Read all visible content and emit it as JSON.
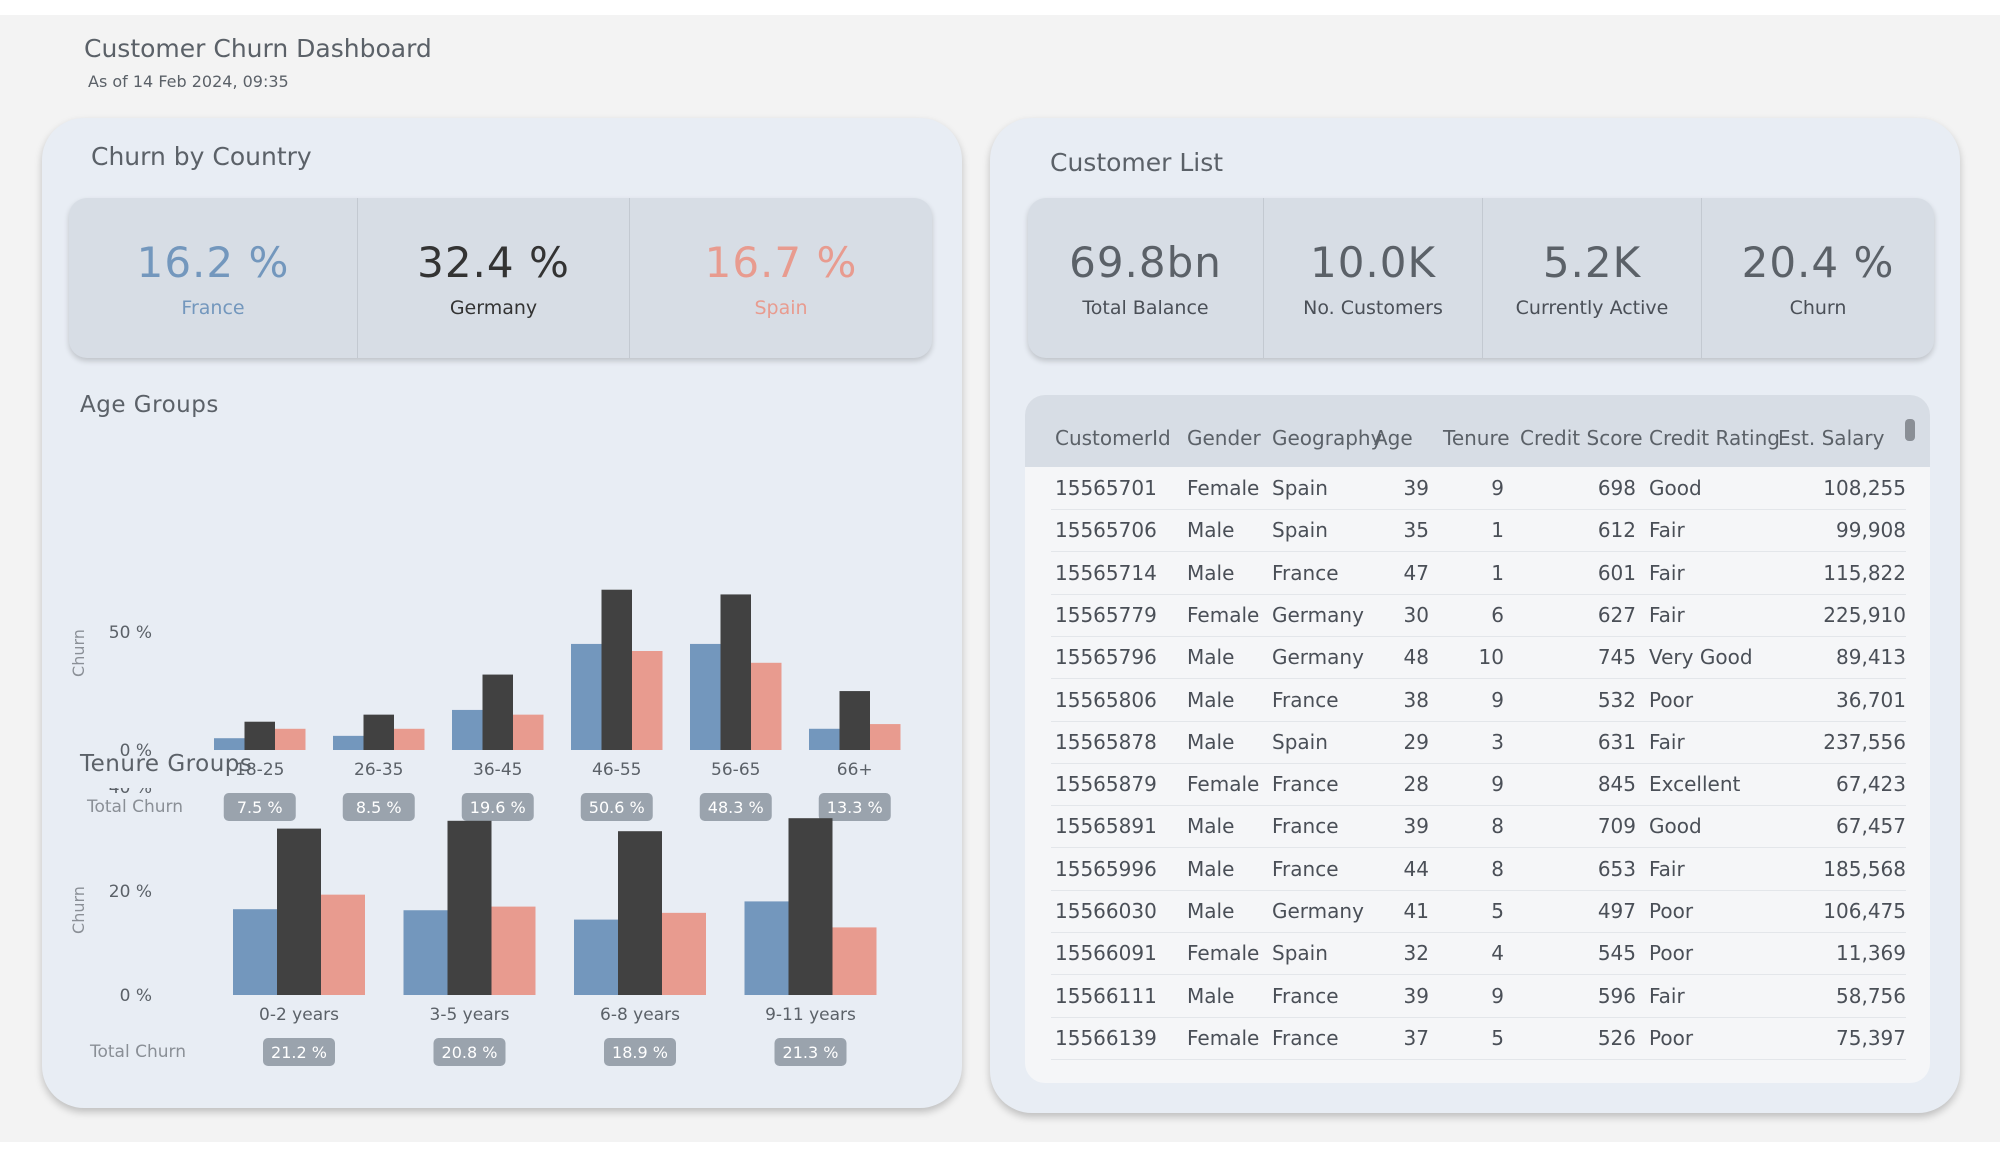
{
  "page": {
    "title": "Customer Churn Dashboard",
    "subtitle": "As of 14 Feb 2024, 09:35"
  },
  "colors": {
    "france": "#7397bd",
    "germany": "#414141",
    "spain": "#e89b8f"
  },
  "left": {
    "title": "Churn by Country",
    "kpis": [
      {
        "value": "16.2 %",
        "label": "France",
        "color": "#7397bd"
      },
      {
        "value": "32.4 %",
        "label": "Germany",
        "color": "#333333"
      },
      {
        "value": "16.7 %",
        "label": "Spain",
        "color": "#e89b8f"
      }
    ],
    "age_title": "Age Groups",
    "tenure_title": "Tenure Groups",
    "total_churn_label": "Total Churn",
    "age_totals": [
      "7.5 %",
      "8.5 %",
      "19.6 %",
      "50.6 %",
      "48.3 %",
      "13.3 %"
    ],
    "tenure_totals": [
      "21.2 %",
      "20.8 %",
      "18.9 %",
      "21.3 %"
    ]
  },
  "chart_data": [
    {
      "type": "bar",
      "title": "Age Groups",
      "ylabel": "Churn",
      "categories": [
        "18-25",
        "26-35",
        "36-45",
        "46-55",
        "56-65",
        "66+"
      ],
      "series": [
        {
          "name": "France",
          "values": [
            5,
            6,
            17,
            45,
            45,
            9
          ]
        },
        {
          "name": "Germany",
          "values": [
            12,
            15,
            32,
            68,
            66,
            25
          ]
        },
        {
          "name": "Spain",
          "values": [
            9,
            9,
            15,
            42,
            37,
            11
          ]
        }
      ],
      "yticks": [
        "0 %",
        "50 %"
      ],
      "ylim": [
        0,
        70
      ],
      "grid": false
    },
    {
      "type": "bar",
      "title": "Tenure Groups",
      "ylabel": "Churn",
      "categories": [
        "0-2 years",
        "3-5 years",
        "6-8 years",
        "9-11 years"
      ],
      "series": [
        {
          "name": "France",
          "values": [
            16.5,
            16.3,
            14.5,
            18
          ]
        },
        {
          "name": "Germany",
          "values": [
            32,
            33.5,
            31.5,
            34
          ]
        },
        {
          "name": "Spain",
          "values": [
            19.3,
            17,
            15.8,
            13
          ]
        }
      ],
      "yticks": [
        "0 %",
        "20 %",
        "40 %"
      ],
      "ylim": [
        0,
        40
      ],
      "grid": false
    }
  ],
  "right": {
    "title": "Customer List",
    "kpis": [
      {
        "value": "69.8bn",
        "label": "Total Balance"
      },
      {
        "value": "10.0K",
        "label": "No. Customers"
      },
      {
        "value": "5.2K",
        "label": "Currently Active"
      },
      {
        "value": "20.4 %",
        "label": "Churn"
      }
    ],
    "table": {
      "columns": [
        "CustomerId",
        "Gender",
        "Geography",
        "Age",
        "Tenure",
        "Credit Score",
        "Credit Rating",
        "Est. Salary"
      ],
      "rows": [
        [
          "15565701",
          "Female",
          "Spain",
          "39",
          "9",
          "698",
          "Good",
          "108,255"
        ],
        [
          "15565706",
          "Male",
          "Spain",
          "35",
          "1",
          "612",
          "Fair",
          "99,908"
        ],
        [
          "15565714",
          "Male",
          "France",
          "47",
          "1",
          "601",
          "Fair",
          "115,822"
        ],
        [
          "15565779",
          "Female",
          "Germany",
          "30",
          "6",
          "627",
          "Fair",
          "225,910"
        ],
        [
          "15565796",
          "Male",
          "Germany",
          "48",
          "10",
          "745",
          "Very Good",
          "89,413"
        ],
        [
          "15565806",
          "Male",
          "France",
          "38",
          "9",
          "532",
          "Poor",
          "36,701"
        ],
        [
          "15565878",
          "Male",
          "Spain",
          "29",
          "3",
          "631",
          "Fair",
          "237,556"
        ],
        [
          "15565879",
          "Female",
          "France",
          "28",
          "9",
          "845",
          "Excellent",
          "67,423"
        ],
        [
          "15565891",
          "Male",
          "France",
          "39",
          "8",
          "709",
          "Good",
          "67,457"
        ],
        [
          "15565996",
          "Male",
          "France",
          "44",
          "8",
          "653",
          "Fair",
          "185,568"
        ],
        [
          "15566030",
          "Male",
          "Germany",
          "41",
          "5",
          "497",
          "Poor",
          "106,475"
        ],
        [
          "15566091",
          "Female",
          "Spain",
          "32",
          "4",
          "545",
          "Poor",
          "11,369"
        ],
        [
          "15566111",
          "Male",
          "France",
          "39",
          "9",
          "596",
          "Fair",
          "58,756"
        ],
        [
          "15566139",
          "Female",
          "France",
          "37",
          "5",
          "526",
          "Poor",
          "75,397"
        ]
      ]
    }
  }
}
